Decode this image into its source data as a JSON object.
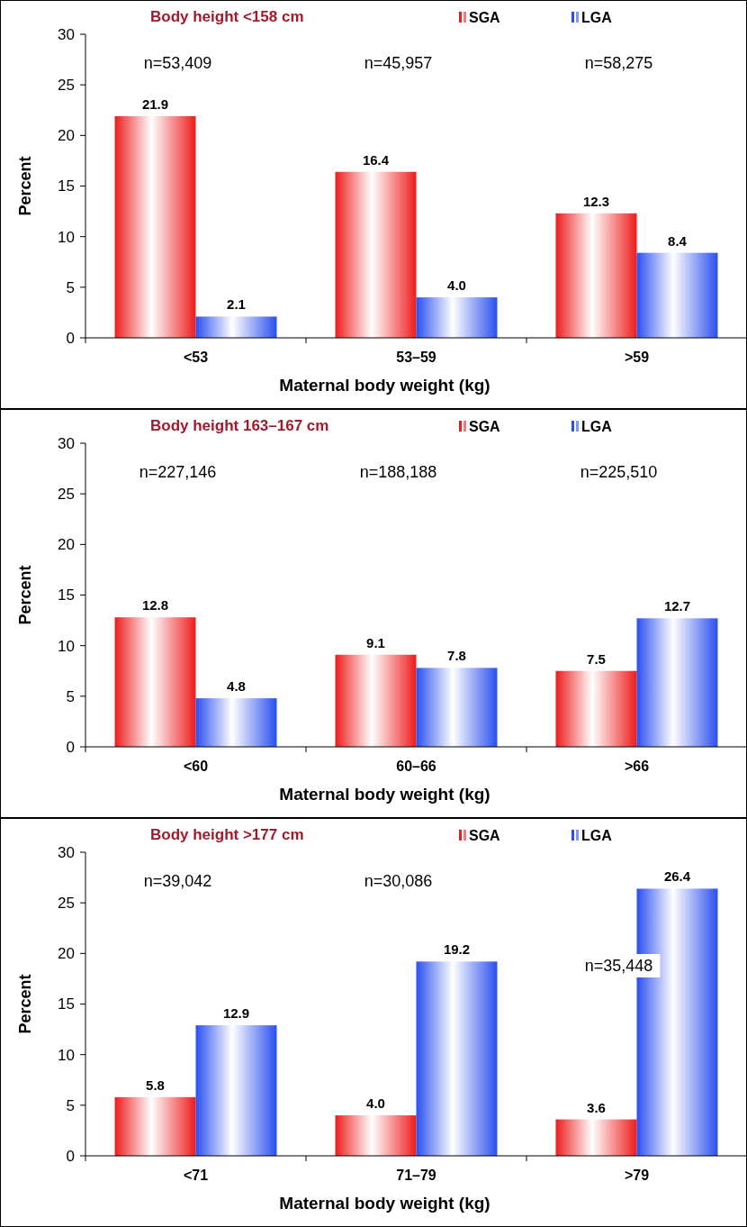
{
  "chart_data": [
    {
      "type": "bar",
      "title": "Body height <158 cm",
      "xlabel": "Maternal body weight (kg)",
      "ylabel": "Percent",
      "categories": [
        "<53",
        "53–59",
        ">59"
      ],
      "ylim": [
        0,
        30
      ],
      "yticks": [
        0,
        5,
        10,
        15,
        20,
        25,
        30
      ],
      "legend": "top right",
      "grid": false,
      "series": [
        {
          "name": "SGA",
          "color": "#ee1c1c",
          "values": [
            21.9,
            16.4,
            12.3
          ],
          "value_labels": [
            "21.9",
            "16.4",
            "12.3"
          ]
        },
        {
          "name": "LGA",
          "color": "#2a4ff0",
          "values": [
            2.1,
            4.0,
            8.4
          ],
          "value_labels": [
            "2.1",
            "4.0",
            "8.4"
          ]
        }
      ],
      "annotations": [
        "n=53,409",
        "n=45,957",
        "n=58,275"
      ]
    },
    {
      "type": "bar",
      "title": "Body height 163–167 cm",
      "xlabel": "Maternal body weight (kg)",
      "ylabel": "Percent",
      "categories": [
        "<60",
        "60–66",
        ">66"
      ],
      "ylim": [
        0,
        30
      ],
      "yticks": [
        0,
        5,
        10,
        15,
        20,
        25,
        30
      ],
      "legend": "top right",
      "grid": false,
      "series": [
        {
          "name": "SGA",
          "color": "#ee1c1c",
          "values": [
            12.8,
            9.1,
            7.5
          ],
          "value_labels": [
            "12.8",
            "9.1",
            "7.5"
          ]
        },
        {
          "name": "LGA",
          "color": "#2a4ff0",
          "values": [
            4.8,
            7.8,
            12.7
          ],
          "value_labels": [
            "4.8",
            "7.8",
            "12.7"
          ]
        }
      ],
      "annotations": [
        "n=227,146",
        "n=188,188",
        "n=225,510"
      ]
    },
    {
      "type": "bar",
      "title": "Body height >177 cm",
      "xlabel": "Maternal body weight (kg)",
      "ylabel": "Percent",
      "categories": [
        "<71",
        "71–79",
        ">79"
      ],
      "ylim": [
        0,
        30
      ],
      "yticks": [
        0,
        5,
        10,
        15,
        20,
        25,
        30
      ],
      "legend": "top right",
      "grid": false,
      "series": [
        {
          "name": "SGA",
          "color": "#ee1c1c",
          "values": [
            5.8,
            4.0,
            3.6
          ],
          "value_labels": [
            "5.8",
            "4.0",
            "3.6"
          ]
        },
        {
          "name": "LGA",
          "color": "#2a4ff0",
          "values": [
            12.9,
            19.2,
            26.4
          ],
          "value_labels": [
            "12.9",
            "19.2",
            "26.4"
          ]
        }
      ],
      "annotations": [
        "n=39,042",
        "n=30,086",
        "n=35,448"
      ]
    }
  ]
}
